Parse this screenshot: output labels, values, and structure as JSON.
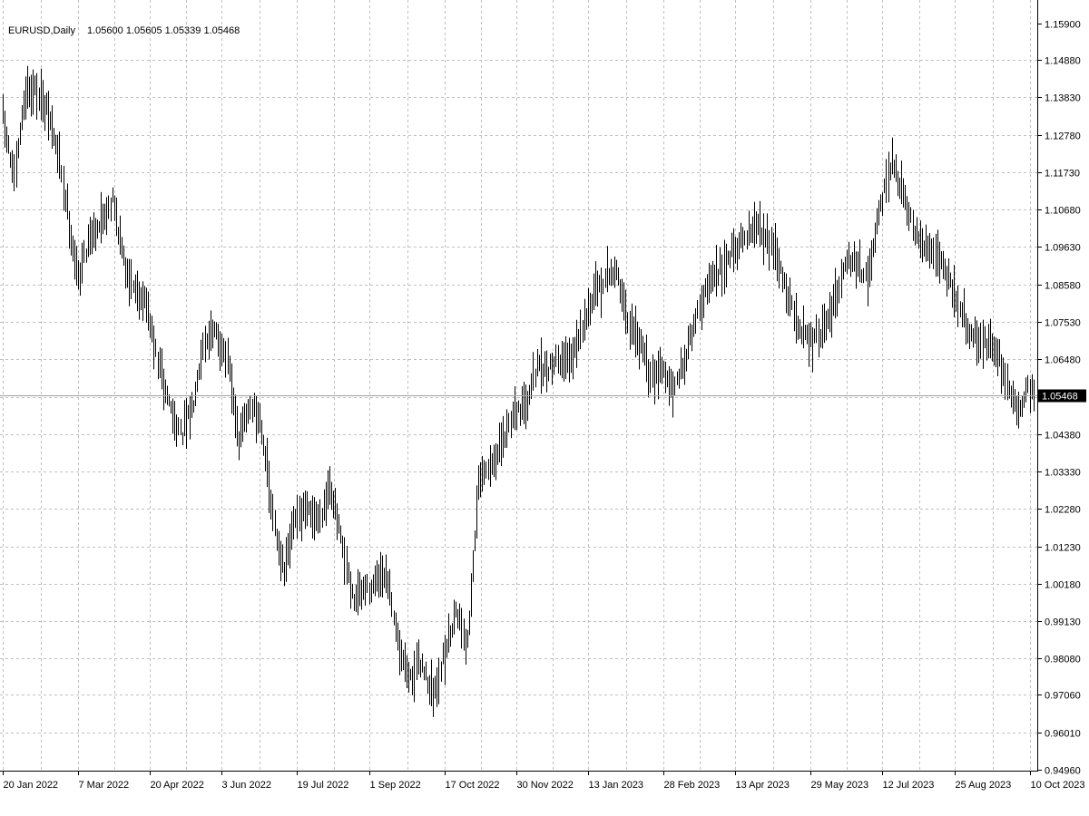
{
  "header": {
    "symbol_info": "EURUSD,Daily",
    "ohlc": "1.05600 1.05605 1.05339 1.05468"
  },
  "colors": {
    "background": "#ffffff",
    "bars": "#000000",
    "grid": "#c0c0c0",
    "axis": "#000000",
    "current_price_line": "#a0a0a0",
    "price_tag_bg": "#000000",
    "price_tag_text": "#ffffff"
  },
  "chart_data": {
    "type": "ohlc-bar",
    "symbol": "EURUSD",
    "timeframe": "Daily",
    "last_ohlc": {
      "open": 1.056,
      "high": 1.05605,
      "low": 1.05339,
      "close": 1.05468
    },
    "current_price": 1.05468,
    "current_price_label": "1.05468",
    "grid": true,
    "ylim": [
      0.9483,
      1.1592
    ],
    "y_ticks": [
      "1.15900",
      "1.14880",
      "1.13830",
      "1.12780",
      "1.11730",
      "1.10680",
      "1.09630",
      "1.08580",
      "1.07530",
      "1.06480",
      "1.05430",
      "1.04380",
      "1.03330",
      "1.02280",
      "1.01230",
      "1.00180",
      "0.99130",
      "0.98080",
      "0.97060",
      "0.96010",
      "0.94960"
    ],
    "x_ticks": [
      "20 Jan 2022",
      "7 Mar 2022",
      "20 Apr 2022",
      "3 Jun 2022",
      "19 Jul 2022",
      "1 Sep 2022",
      "17 Oct 2022",
      "30 Nov 2022",
      "13 Jan 2023",
      "28 Feb 2023",
      "13 Apr 2023",
      "29 May 2023",
      "12 Jul 2023",
      "25 Aug 2023",
      "10 Oct 2023"
    ],
    "x_range": [
      "2022-01-20",
      "2023-10-13"
    ],
    "close_series": [
      {
        "date": "2022-01-20",
        "close": 1.133
      },
      {
        "date": "2022-01-27",
        "close": 1.115
      },
      {
        "date": "2022-02-03",
        "close": 1.141
      },
      {
        "date": "2022-02-10",
        "close": 1.14
      },
      {
        "date": "2022-02-17",
        "close": 1.133
      },
      {
        "date": "2022-02-24",
        "close": 1.12
      },
      {
        "date": "2022-03-01",
        "close": 1.105
      },
      {
        "date": "2022-03-07",
        "close": 1.087
      },
      {
        "date": "2022-03-14",
        "close": 1.1
      },
      {
        "date": "2022-03-21",
        "close": 1.103
      },
      {
        "date": "2022-03-28",
        "close": 1.11
      },
      {
        "date": "2022-04-04",
        "close": 1.092
      },
      {
        "date": "2022-04-11",
        "close": 1.085
      },
      {
        "date": "2022-04-18",
        "close": 1.08
      },
      {
        "date": "2022-04-25",
        "close": 1.063
      },
      {
        "date": "2022-05-02",
        "close": 1.052
      },
      {
        "date": "2022-05-09",
        "close": 1.043
      },
      {
        "date": "2022-05-16",
        "close": 1.052
      },
      {
        "date": "2022-05-23",
        "close": 1.07
      },
      {
        "date": "2022-05-30",
        "close": 1.072
      },
      {
        "date": "2022-06-06",
        "close": 1.065
      },
      {
        "date": "2022-06-13",
        "close": 1.042
      },
      {
        "date": "2022-06-20",
        "close": 1.052
      },
      {
        "date": "2022-06-27",
        "close": 1.047
      },
      {
        "date": "2022-07-04",
        "close": 1.02
      },
      {
        "date": "2022-07-11",
        "close": 1.005
      },
      {
        "date": "2022-07-18",
        "close": 1.02
      },
      {
        "date": "2022-07-25",
        "close": 1.022
      },
      {
        "date": "2022-08-01",
        "close": 1.02
      },
      {
        "date": "2022-08-08",
        "close": 1.03
      },
      {
        "date": "2022-08-15",
        "close": 1.013
      },
      {
        "date": "2022-08-22",
        "close": 0.997
      },
      {
        "date": "2022-08-29",
        "close": 1.0
      },
      {
        "date": "2022-09-05",
        "close": 1.002
      },
      {
        "date": "2022-09-12",
        "close": 1.003
      },
      {
        "date": "2022-09-19",
        "close": 0.986
      },
      {
        "date": "2022-09-26",
        "close": 0.975
      },
      {
        "date": "2022-10-03",
        "close": 0.98
      },
      {
        "date": "2022-10-10",
        "close": 0.97
      },
      {
        "date": "2022-10-17",
        "close": 0.982
      },
      {
        "date": "2022-10-24",
        "close": 0.995
      },
      {
        "date": "2022-10-31",
        "close": 0.985
      },
      {
        "date": "2022-11-07",
        "close": 1.03
      },
      {
        "date": "2022-11-14",
        "close": 1.035
      },
      {
        "date": "2022-11-21",
        "close": 1.04
      },
      {
        "date": "2022-11-28",
        "close": 1.05
      },
      {
        "date": "2022-12-05",
        "close": 1.052
      },
      {
        "date": "2022-12-12",
        "close": 1.062
      },
      {
        "date": "2022-12-19",
        "close": 1.062
      },
      {
        "date": "2022-12-26",
        "close": 1.065
      },
      {
        "date": "2023-01-02",
        "close": 1.065
      },
      {
        "date": "2023-01-09",
        "close": 1.075
      },
      {
        "date": "2023-01-16",
        "close": 1.082
      },
      {
        "date": "2023-01-23",
        "close": 1.087
      },
      {
        "date": "2023-01-30",
        "close": 1.09
      },
      {
        "date": "2023-02-06",
        "close": 1.075
      },
      {
        "date": "2023-02-13",
        "close": 1.07
      },
      {
        "date": "2023-02-20",
        "close": 1.06
      },
      {
        "date": "2023-02-27",
        "close": 1.063
      },
      {
        "date": "2023-03-06",
        "close": 1.055
      },
      {
        "date": "2023-03-13",
        "close": 1.065
      },
      {
        "date": "2023-03-20",
        "close": 1.077
      },
      {
        "date": "2023-03-27",
        "close": 1.085
      },
      {
        "date": "2023-04-03",
        "close": 1.09
      },
      {
        "date": "2023-04-10",
        "close": 1.095
      },
      {
        "date": "2023-04-17",
        "close": 1.098
      },
      {
        "date": "2023-04-24",
        "close": 1.102
      },
      {
        "date": "2023-05-01",
        "close": 1.101
      },
      {
        "date": "2023-05-08",
        "close": 1.093
      },
      {
        "date": "2023-05-15",
        "close": 1.083
      },
      {
        "date": "2023-05-22",
        "close": 1.073
      },
      {
        "date": "2023-05-29",
        "close": 1.07
      },
      {
        "date": "2023-06-05",
        "close": 1.072
      },
      {
        "date": "2023-06-12",
        "close": 1.08
      },
      {
        "date": "2023-06-19",
        "close": 1.093
      },
      {
        "date": "2023-06-26",
        "close": 1.092
      },
      {
        "date": "2023-07-03",
        "close": 1.087
      },
      {
        "date": "2023-07-10",
        "close": 1.105
      },
      {
        "date": "2023-07-17",
        "close": 1.12
      },
      {
        "date": "2023-07-24",
        "close": 1.112
      },
      {
        "date": "2023-07-31",
        "close": 1.1
      },
      {
        "date": "2023-08-07",
        "close": 1.097
      },
      {
        "date": "2023-08-14",
        "close": 1.095
      },
      {
        "date": "2023-08-21",
        "close": 1.088
      },
      {
        "date": "2023-08-28",
        "close": 1.08
      },
      {
        "date": "2023-09-04",
        "close": 1.072
      },
      {
        "date": "2023-09-11",
        "close": 1.07
      },
      {
        "date": "2023-09-18",
        "close": 1.068
      },
      {
        "date": "2023-09-25",
        "close": 1.06
      },
      {
        "date": "2023-10-02",
        "close": 1.05
      },
      {
        "date": "2023-10-09",
        "close": 1.057
      },
      {
        "date": "2023-10-13",
        "close": 1.05468
      }
    ]
  }
}
